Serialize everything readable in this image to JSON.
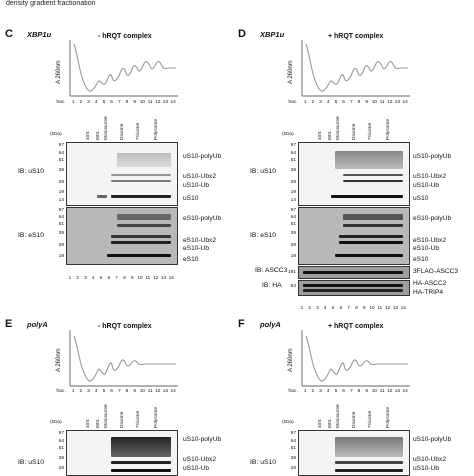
{
  "caption": "density gradient fractionation",
  "panels": [
    {
      "id": "C",
      "gene": "XBP1u",
      "condition": "- hRQT complex",
      "ylabel": "A 260nm",
      "frac_label": "frac.",
      "fractions": [
        "1",
        "2",
        "3",
        "4",
        "5",
        "6",
        "7",
        "8",
        "9",
        "10",
        "11",
        "12",
        "13",
        "14"
      ],
      "gradient_labels": [
        "40S",
        "60S",
        "Monosome",
        "Disome",
        "Trisome",
        "Polysome"
      ],
      "kda_label": "(kDa)",
      "blots": [
        {
          "ib": "IB: uS10",
          "markers": [
            "97",
            "64",
            "51",
            "39",
            "28",
            "19",
            "14"
          ],
          "bands": [
            "uS10-polyUb",
            "uS10-Ubx2",
            "uS10-Ub",
            "uS10"
          ]
        },
        {
          "ib": "IB: eS10",
          "markers": [
            "97",
            "64",
            "51",
            "39",
            "28",
            "19"
          ],
          "bands": [
            "eS10-polyUb",
            "eS10-Ubx2",
            "eS10-Ub",
            "eS10"
          ]
        }
      ],
      "lanes": [
        "1",
        "2",
        "3",
        "4",
        "5",
        "6",
        "7",
        "8",
        "9",
        "10",
        "11",
        "12",
        "13",
        "14"
      ]
    },
    {
      "id": "D",
      "gene": "XBP1u",
      "condition": "+ hRQT complex",
      "ylabel": "A 260nm",
      "frac_label": "frac.",
      "fractions": [
        "1",
        "2",
        "3",
        "4",
        "5",
        "6",
        "7",
        "8",
        "9",
        "10",
        "11",
        "12",
        "13",
        "14"
      ],
      "gradient_labels": [
        "40S",
        "60S",
        "Monosome",
        "Disome",
        "Trisome",
        "Polysome"
      ],
      "kda_label": "(kDa)",
      "blots": [
        {
          "ib": "IB: uS10",
          "markers": [
            "97",
            "64",
            "51",
            "39",
            "28",
            "19",
            "14"
          ],
          "bands": [
            "uS10-polyUb",
            "uS10-Ubx2",
            "uS10-Ub",
            "uS10"
          ]
        },
        {
          "ib": "IB: eS10",
          "markers": [
            "97",
            "64",
            "51",
            "39",
            "28",
            "19"
          ],
          "bands": [
            "eS10-polyUb",
            "eS10-Ubx2",
            "eS10-Ub",
            "eS10"
          ]
        },
        {
          "ib": "IB: ASCC3",
          "markers": [
            "191"
          ],
          "bands": [
            "3FLAG-ASCC3"
          ]
        },
        {
          "ib": "IB: HA",
          "markers": [
            "64"
          ],
          "bands": [
            "HA-ASCC2",
            "HA-TRIP4"
          ]
        }
      ],
      "lanes": [
        "1",
        "2",
        "3",
        "4",
        "5",
        "6",
        "7",
        "8",
        "9",
        "10",
        "11",
        "12",
        "13",
        "14"
      ]
    },
    {
      "id": "E",
      "gene": "polyA",
      "condition": "- hRQT complex",
      "ylabel": "A 260nm",
      "frac_label": "frac.",
      "fractions": [
        "1",
        "2",
        "3",
        "4",
        "5",
        "6",
        "7",
        "8",
        "9",
        "10",
        "11",
        "12",
        "13",
        "14"
      ],
      "gradient_labels": [
        "40S",
        "60S",
        "Monosome",
        "Disome",
        "Trisome",
        "Polysome"
      ],
      "kda_label": "(kDa)",
      "blots": [
        {
          "ib": "IB: uS10",
          "markers": [
            "97",
            "64",
            "51",
            "39",
            "28"
          ],
          "bands": [
            "uS10-polyUb",
            "uS10-Ubx2",
            "uS10-Ub"
          ]
        }
      ]
    },
    {
      "id": "F",
      "gene": "polyA",
      "condition": "+ hRQT complex",
      "ylabel": "A 260nm",
      "frac_label": "frac.",
      "fractions": [
        "1",
        "2",
        "3",
        "4",
        "5",
        "6",
        "7",
        "8",
        "9",
        "10",
        "11",
        "12",
        "13",
        "14"
      ],
      "gradient_labels": [
        "40S",
        "60S",
        "Monosome",
        "Disome",
        "Trisome",
        "Polysome"
      ],
      "kda_label": "(kDa)",
      "blots": [
        {
          "ib": "IB: uS10",
          "markers": [
            "97",
            "64",
            "51",
            "39",
            "28"
          ],
          "bands": [
            "uS10-polyUb",
            "uS10-Ubx2",
            "uS10-Ub"
          ]
        }
      ]
    }
  ]
}
